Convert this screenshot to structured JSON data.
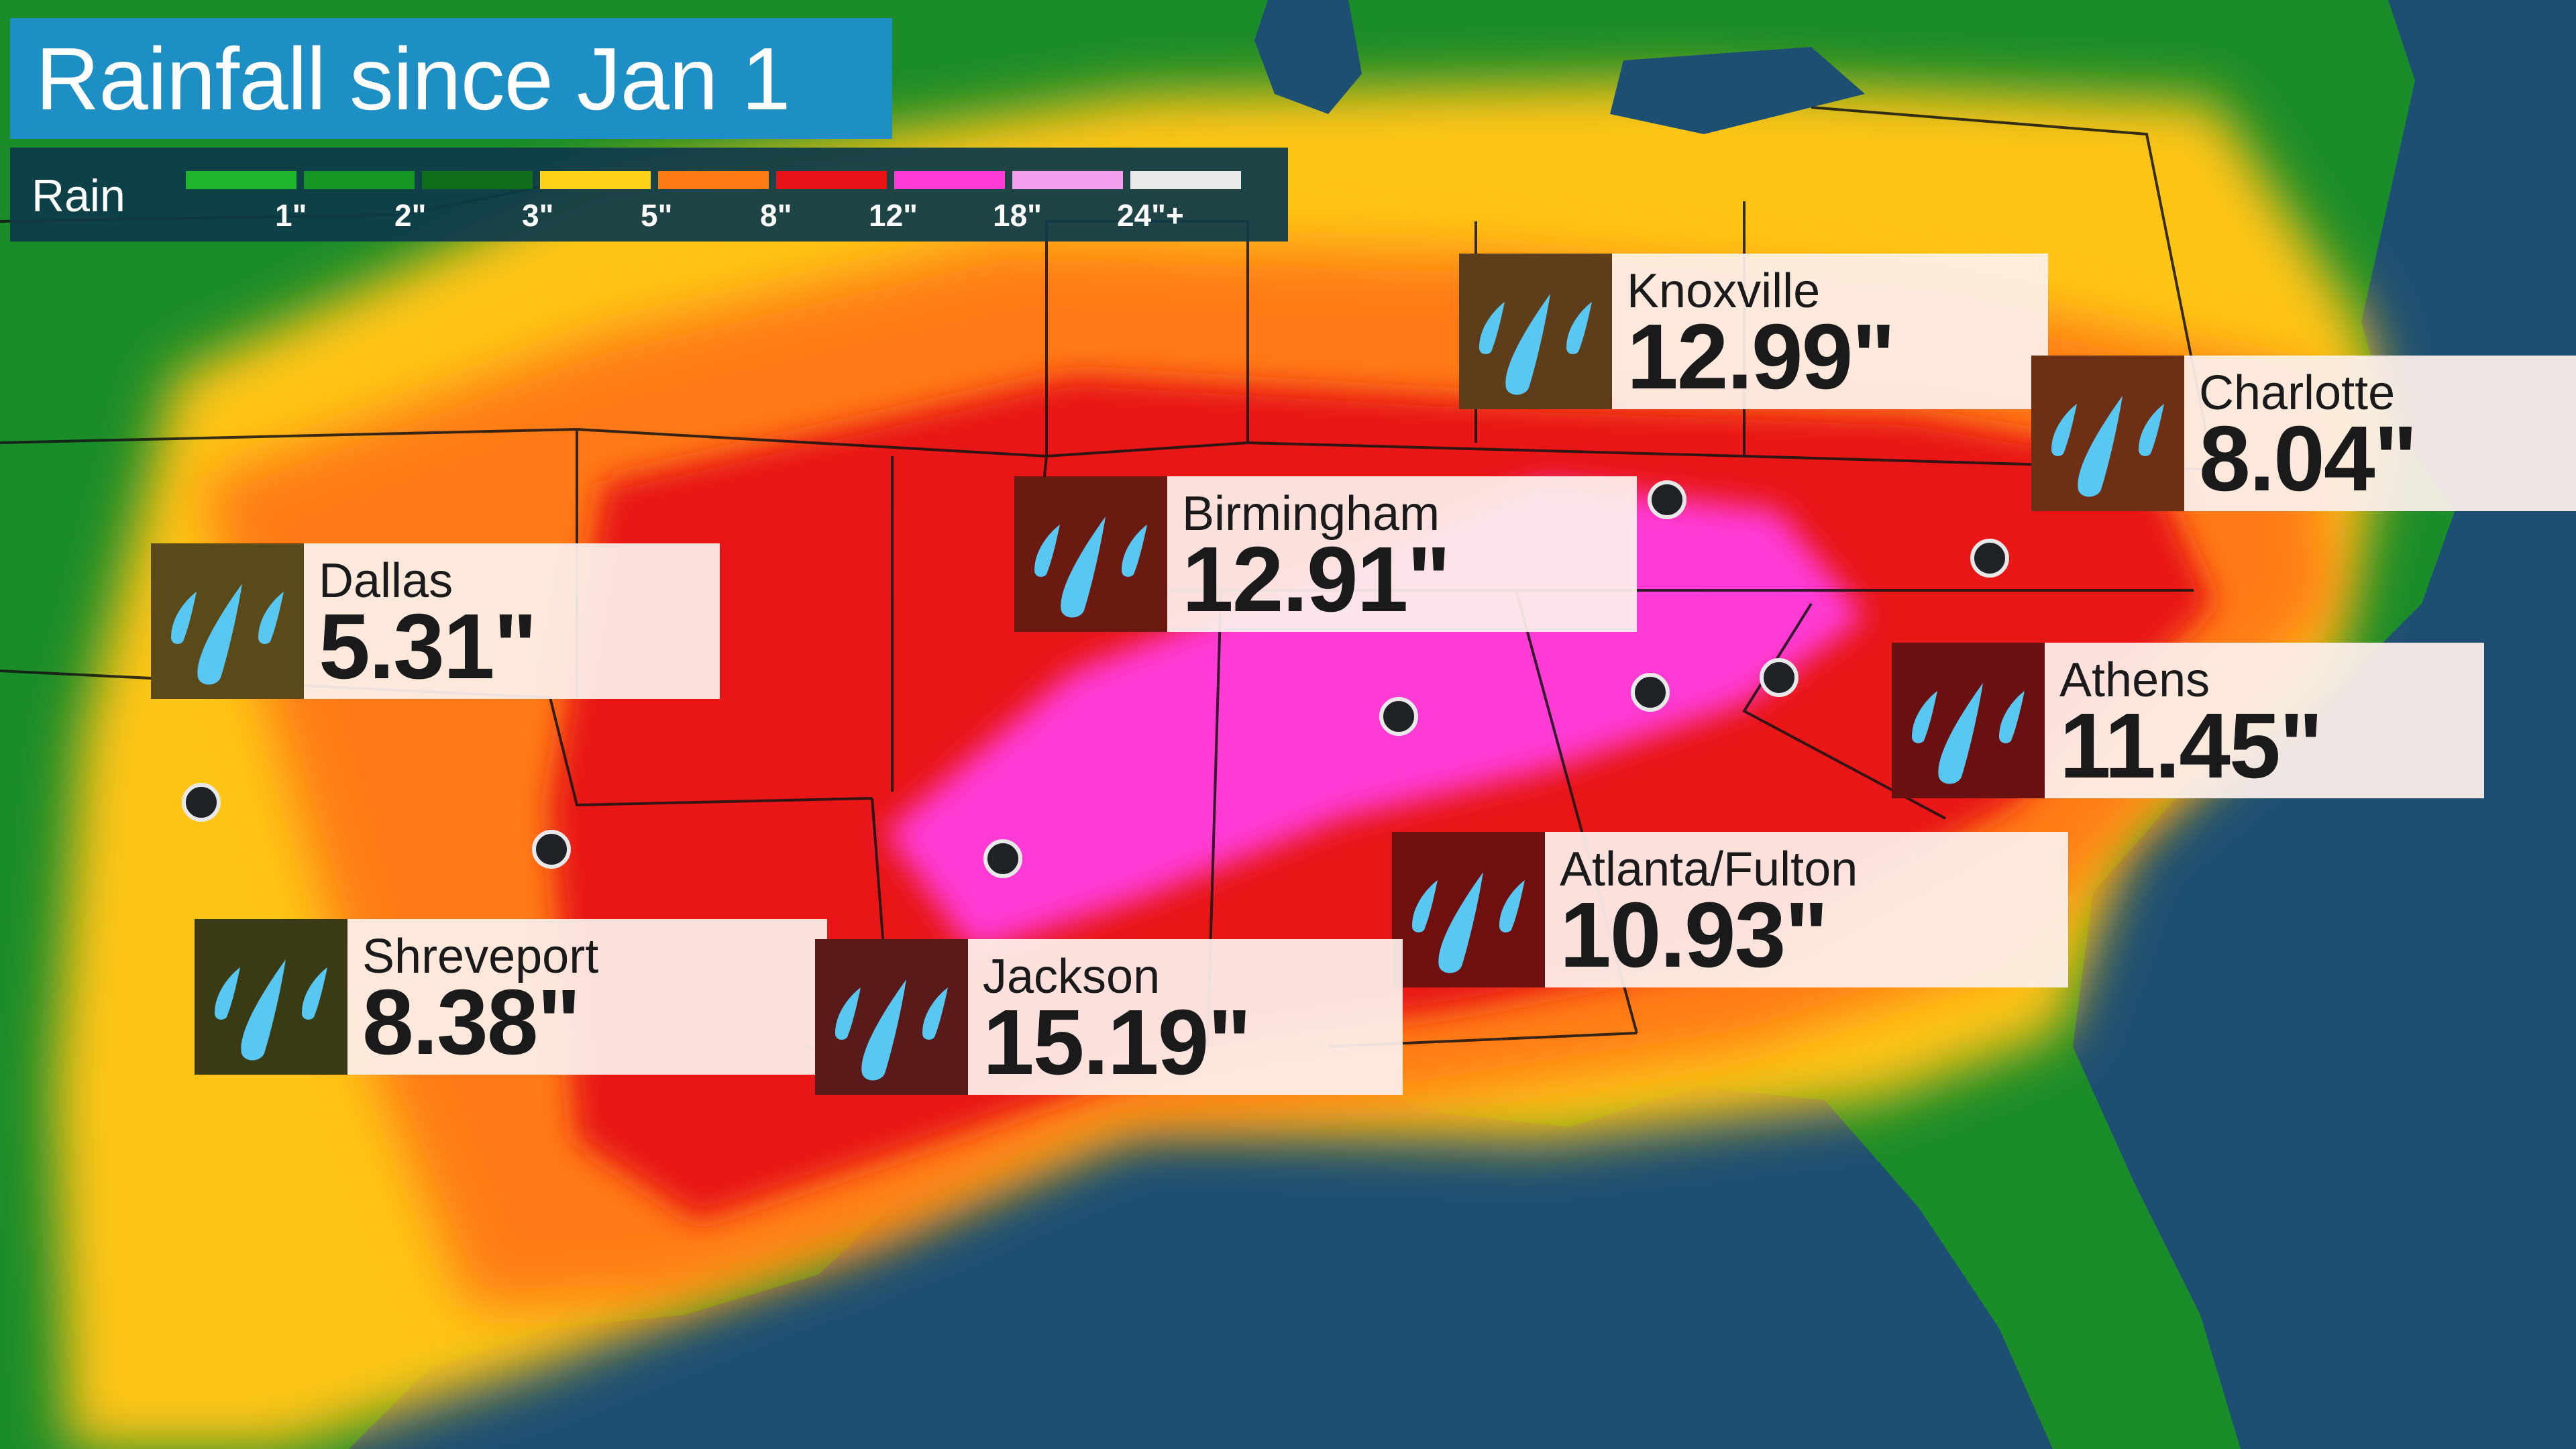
{
  "title": "Rainfall since Jan 1",
  "legend": {
    "label": "Rain",
    "swatches": [
      {
        "color": "#1fb52c"
      },
      {
        "color": "#169624"
      },
      {
        "color": "#0f6e1a"
      },
      {
        "color": "#ffd21a"
      },
      {
        "color": "#ff7a12"
      },
      {
        "color": "#e81216"
      },
      {
        "color": "#ff3ad6"
      },
      {
        "color": "#f3a0ee"
      },
      {
        "color": "#e9e9e9"
      }
    ],
    "ticks": [
      "1\"",
      "2\"",
      "3\"",
      "5\"",
      "8\"",
      "12\"",
      "18\"",
      "24\"+"
    ]
  },
  "colors": {
    "ocean": "#1d4f72",
    "land_green": "#1a8c2a",
    "title_bar": "#1e8fc4",
    "icon_drop": "#58c7f2"
  },
  "icons": [
    "rain-drops-icon",
    "city-dot"
  ],
  "callouts": [
    {
      "id": "knoxville",
      "city": "Knoxville",
      "value": "12.99\"",
      "icon_bg": "#5e3e1a"
    },
    {
      "id": "charlotte",
      "city": "Charlotte",
      "value": "8.04\"",
      "icon_bg": "#6e3014"
    },
    {
      "id": "birmingham",
      "city": "Birmingham",
      "value": "12.91\"",
      "icon_bg": "#6a1a10"
    },
    {
      "id": "dallas",
      "city": "Dallas",
      "value": "5.31\"",
      "icon_bg": "#5a4a1a"
    },
    {
      "id": "athens",
      "city": "Athens",
      "value": "11.45\"",
      "icon_bg": "#6a1010"
    },
    {
      "id": "atlanta",
      "city": "Atlanta/Fulton",
      "value": "10.93\"",
      "icon_bg": "#6e1010"
    },
    {
      "id": "shreveport",
      "city": "Shreveport",
      "value": "8.38\"",
      "icon_bg": "#3a3a14"
    },
    {
      "id": "jackson",
      "city": "Jackson",
      "value": "15.19\"",
      "icon_bg": "#5a1a1a"
    }
  ]
}
